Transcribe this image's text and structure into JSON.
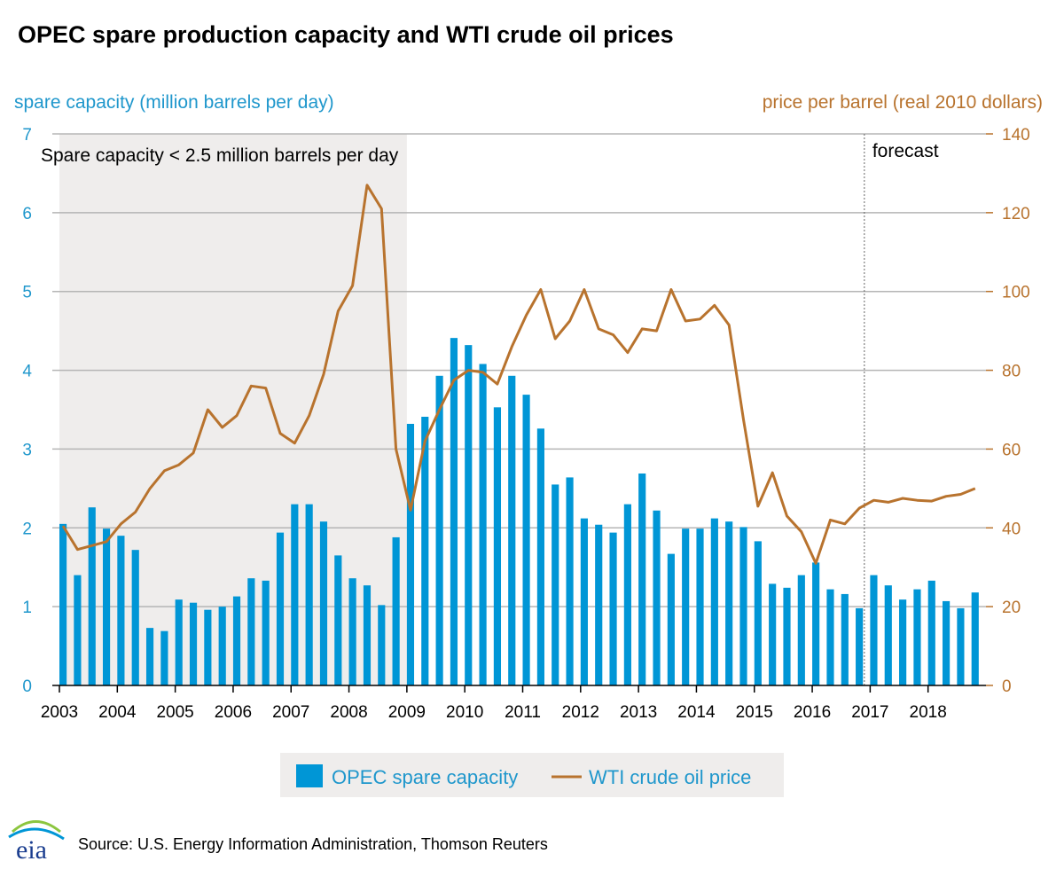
{
  "chart_data": {
    "type": "bar+line",
    "title": "OPEC spare production capacity and WTI crude oil prices",
    "ylabel_left": "spare capacity (million barrels per day)",
    "ylabel_right": "price per barrel (real 2010 dollars)",
    "ylim_left": [
      0,
      7
    ],
    "ylim_right": [
      0,
      140
    ],
    "yticks_left": [
      "0",
      "1",
      "2",
      "3",
      "4",
      "5",
      "6",
      "7"
    ],
    "yticks_right": [
      "0",
      "20",
      "40",
      "60",
      "80",
      "100",
      "120",
      "140"
    ],
    "x_tick_labels": [
      "2003",
      "2004",
      "2005",
      "2006",
      "2007",
      "2008",
      "2009",
      "2010",
      "2011",
      "2012",
      "2013",
      "2014",
      "2015",
      "2016",
      "2017",
      "2018"
    ],
    "x_start": 2003,
    "x_end": 2019,
    "shaded_region": {
      "x_from": 2003,
      "x_to": 2009,
      "label": "Spare capacity < 2.5 million barrels per day"
    },
    "forecast_start": 2016.9,
    "forecast_label": "forecast",
    "colors": {
      "bars": "#0096d6",
      "line": "#b8732e",
      "shade": "#efedec",
      "grid": "#b5b5b5",
      "left_axis": "#1f97cc",
      "right_axis": "#b8732e"
    },
    "series": [
      {
        "name": "OPEC spare capacity",
        "type": "bar",
        "axis": "left",
        "values": [
          2.05,
          1.4,
          2.26,
          1.99,
          1.9,
          1.72,
          0.73,
          0.69,
          1.09,
          1.05,
          0.96,
          1.0,
          1.13,
          1.36,
          1.33,
          1.94,
          2.3,
          2.3,
          2.08,
          1.65,
          1.36,
          1.27,
          1.02,
          1.88,
          3.32,
          3.41,
          3.93,
          4.41,
          4.32,
          4.08,
          3.53,
          3.93,
          3.69,
          3.26,
          2.55,
          2.64,
          2.12,
          2.04,
          1.94,
          2.3,
          2.69,
          2.22,
          1.67,
          1.99,
          1.99,
          2.12,
          2.08,
          2.01,
          1.83,
          1.29,
          1.24,
          1.4,
          1.56,
          1.22,
          1.16,
          0.98,
          1.4,
          1.27,
          1.09,
          1.22,
          1.33,
          1.07,
          0.98,
          1.18
        ]
      },
      {
        "name": "WTI crude oil price",
        "type": "line",
        "axis": "right",
        "values": [
          40.5,
          34.5,
          35.5,
          36.5,
          41.0,
          44.0,
          50.0,
          54.5,
          56.0,
          59.0,
          70.0,
          65.5,
          68.5,
          76.0,
          75.5,
          64.0,
          61.5,
          68.5,
          79.0,
          95.0,
          101.5,
          127.0,
          121.0,
          60.0,
          44.5,
          62.0,
          70.0,
          77.5,
          80.0,
          79.5,
          76.5,
          86.0,
          94.0,
          100.5,
          88.0,
          92.5,
          100.5,
          90.5,
          89.0,
          84.5,
          90.5,
          90.0,
          100.5,
          92.5,
          93.0,
          96.5,
          91.5,
          67.5,
          45.5,
          54.0,
          43.0,
          39.0,
          31.0,
          42.0,
          41.0,
          45.0,
          47.0,
          46.5,
          47.5,
          47.0,
          46.8,
          48.0,
          48.5,
          50.0
        ]
      }
    ],
    "legend": [
      "OPEC spare capacity",
      "WTI crude oil price"
    ],
    "legend_position": "bottom-center"
  },
  "source_text": "Source: U.S. Energy Information Administration, Thomson Reuters",
  "logo_text": "eia"
}
